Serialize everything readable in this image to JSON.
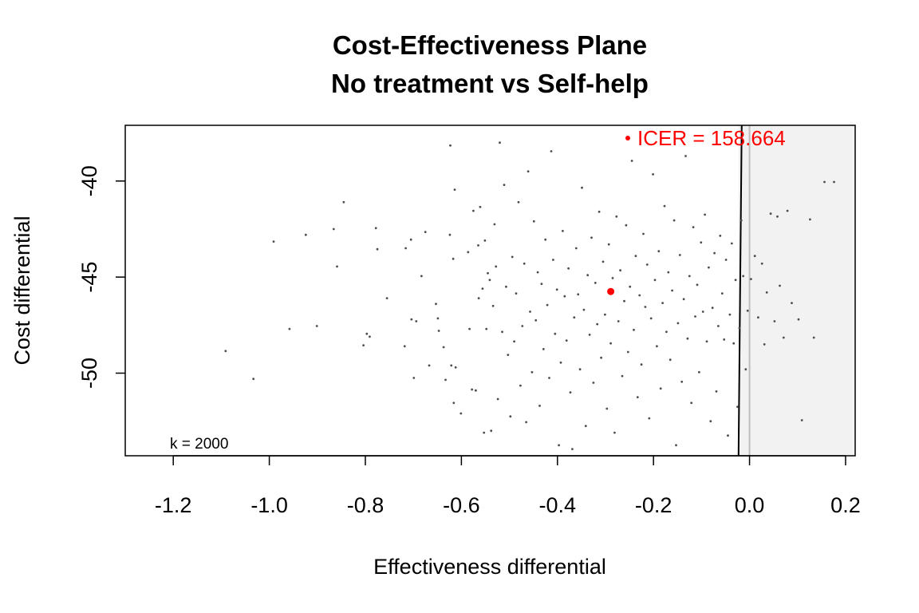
{
  "chart_data": {
    "type": "scatter",
    "title": "Cost-Effectiveness Plane",
    "subtitle": "No treatment vs Self-help",
    "xlabel": "Effectiveness differential",
    "ylabel": "Cost differential",
    "xlim": [
      -1.3,
      0.22
    ],
    "ylim": [
      -54.3,
      -37.1
    ],
    "x_ticks": [
      -1.2,
      -1.0,
      -0.8,
      -0.6,
      -0.4,
      -0.2,
      0.0,
      0.2
    ],
    "x_tick_labels": [
      "-1.2",
      "-1.0",
      "-0.8",
      "-0.6",
      "-0.4",
      "-0.2",
      "0.0",
      "0.2"
    ],
    "y_ticks": [
      -40,
      -45,
      -50
    ],
    "y_tick_labels": [
      "-40",
      "-45",
      "-50"
    ],
    "icer_point": {
      "x": -0.289,
      "y": -45.75
    },
    "icer_label": "ICER = 158.664",
    "k_label": "k = 2000",
    "willingness_line": {
      "k": 2000,
      "x_intercept": -0.0229
    },
    "colors": {
      "points": "#4d4d4d",
      "icer": "#ff0000",
      "region": "#f2f2f2",
      "y_axis_zero": "#bebebe"
    },
    "series": [
      {
        "values": [
          [
            -1.091,
            -48.85
          ],
          [
            -1.033,
            -50.3
          ],
          [
            -0.991,
            -43.15
          ],
          [
            -0.958,
            -47.7
          ],
          [
            -0.924,
            -42.8
          ],
          [
            -0.901,
            -47.55
          ],
          [
            -0.866,
            -42.5
          ],
          [
            -0.859,
            -44.45
          ],
          [
            -0.845,
            -41.1
          ],
          [
            -0.804,
            -48.55
          ],
          [
            -0.797,
            -47.95
          ],
          [
            -0.791,
            -48.1
          ],
          [
            -0.778,
            -42.45
          ],
          [
            -0.775,
            -43.55
          ],
          [
            -0.755,
            -46.1
          ],
          [
            -0.718,
            -48.6
          ],
          [
            -0.716,
            -43.5
          ],
          [
            -0.705,
            -43.05
          ],
          [
            -0.704,
            -47.2
          ],
          [
            -0.699,
            -50.25
          ],
          [
            -0.694,
            -47.3
          ],
          [
            -0.683,
            -44.95
          ],
          [
            -0.675,
            -42.65
          ],
          [
            -0.667,
            -49.6
          ],
          [
            -0.653,
            -46.4
          ],
          [
            -0.649,
            -47.15
          ],
          [
            -0.647,
            -47.8
          ],
          [
            -0.637,
            -48.65
          ],
          [
            -0.633,
            -50.35
          ],
          [
            -0.624,
            -42.8
          ],
          [
            -0.623,
            -38.15
          ],
          [
            -0.621,
            -49.6
          ],
          [
            -0.617,
            -44.05
          ],
          [
            -0.616,
            -51.55
          ],
          [
            -0.614,
            -40.45
          ],
          [
            -0.612,
            -49.7
          ],
          [
            -0.601,
            -52.1
          ],
          [
            -0.586,
            -43.7
          ],
          [
            -0.583,
            -47.7
          ],
          [
            -0.578,
            -50.85
          ],
          [
            -0.575,
            -41.55
          ],
          [
            -0.57,
            -50.9
          ],
          [
            -0.565,
            -43.35
          ],
          [
            -0.564,
            -46.1
          ],
          [
            -0.561,
            -41.35
          ],
          [
            -0.556,
            -45.6
          ],
          [
            -0.553,
            -53.1
          ],
          [
            -0.551,
            -43.1
          ],
          [
            -0.548,
            -47.7
          ],
          [
            -0.545,
            -44.8
          ],
          [
            -0.541,
            -45.15
          ],
          [
            -0.538,
            -53.0
          ],
          [
            -0.534,
            -46.5
          ],
          [
            -0.531,
            -42.25
          ],
          [
            -0.528,
            -44.45
          ],
          [
            -0.524,
            -51.35
          ],
          [
            -0.52,
            -38.0
          ],
          [
            -0.515,
            -47.85
          ],
          [
            -0.511,
            -40.2
          ],
          [
            -0.507,
            -45.5
          ],
          [
            -0.503,
            -49.05
          ],
          [
            -0.498,
            -52.25
          ],
          [
            -0.494,
            -43.95
          ],
          [
            -0.49,
            -48.35
          ],
          [
            -0.486,
            -45.85
          ],
          [
            -0.481,
            -41.1
          ],
          [
            -0.477,
            -50.65
          ],
          [
            -0.473,
            -47.55
          ],
          [
            -0.469,
            -44.3
          ],
          [
            -0.465,
            -52.55
          ],
          [
            -0.461,
            -39.5
          ],
          [
            -0.457,
            -46.8
          ],
          [
            -0.453,
            -49.95
          ],
          [
            -0.449,
            -42.1
          ],
          [
            -0.445,
            -47.25
          ],
          [
            -0.441,
            -44.75
          ],
          [
            -0.437,
            -51.7
          ],
          [
            -0.433,
            -45.35
          ],
          [
            -0.429,
            -48.75
          ],
          [
            -0.425,
            -43.05
          ],
          [
            -0.421,
            -46.45
          ],
          [
            -0.417,
            -50.25
          ],
          [
            -0.413,
            -38.45
          ],
          [
            -0.409,
            -44.1
          ],
          [
            -0.405,
            -47.95
          ],
          [
            -0.401,
            -45.65
          ],
          [
            -0.397,
            -53.75
          ],
          [
            -0.393,
            -49.45
          ],
          [
            -0.389,
            -42.6
          ],
          [
            -0.385,
            -46.0
          ],
          [
            -0.381,
            -48.3
          ],
          [
            -0.377,
            -44.55
          ],
          [
            -0.373,
            -51.0
          ],
          [
            -0.369,
            -53.95
          ],
          [
            -0.365,
            -47.1
          ],
          [
            -0.361,
            -43.5
          ],
          [
            -0.357,
            -45.9
          ],
          [
            -0.353,
            -49.8
          ],
          [
            -0.349,
            -40.35
          ],
          [
            -0.345,
            -46.7
          ],
          [
            -0.341,
            -52.75
          ],
          [
            -0.337,
            -44.9
          ],
          [
            -0.333,
            -48.0
          ],
          [
            -0.329,
            -42.95
          ],
          [
            -0.325,
            -50.5
          ],
          [
            -0.321,
            -45.3
          ],
          [
            -0.317,
            -47.45
          ],
          [
            -0.313,
            -41.6
          ],
          [
            -0.309,
            -49.2
          ],
          [
            -0.305,
            -44.2
          ],
          [
            -0.301,
            -46.95
          ],
          [
            -0.297,
            -51.85
          ],
          [
            -0.293,
            -43.3
          ],
          [
            -0.289,
            -48.45
          ],
          [
            -0.285,
            -45.05
          ],
          [
            -0.281,
            -53.1
          ],
          [
            -0.277,
            -41.85
          ],
          [
            -0.273,
            -47.3
          ],
          [
            -0.269,
            -44.65
          ],
          [
            -0.265,
            -50.15
          ],
          [
            -0.261,
            -46.25
          ],
          [
            -0.257,
            -42.3
          ],
          [
            -0.253,
            -48.9
          ],
          [
            -0.249,
            -45.5
          ],
          [
            -0.245,
            -38.95
          ],
          [
            -0.241,
            -47.75
          ],
          [
            -0.237,
            -43.9
          ],
          [
            -0.233,
            -51.25
          ],
          [
            -0.229,
            -45.95
          ],
          [
            -0.225,
            -49.55
          ],
          [
            -0.221,
            -42.75
          ],
          [
            -0.217,
            -46.55
          ],
          [
            -0.213,
            -44.35
          ],
          [
            -0.209,
            -52.35
          ],
          [
            -0.205,
            -47.15
          ],
          [
            -0.201,
            -39.65
          ],
          [
            -0.197,
            -45.15
          ],
          [
            -0.193,
            -48.6
          ],
          [
            -0.189,
            -43.65
          ],
          [
            -0.185,
            -50.8
          ],
          [
            -0.181,
            -46.35
          ],
          [
            -0.177,
            -41.3
          ],
          [
            -0.173,
            -47.85
          ],
          [
            -0.169,
            -44.75
          ],
          [
            -0.165,
            -49.3
          ],
          [
            -0.161,
            -45.7
          ],
          [
            -0.157,
            -42.05
          ],
          [
            -0.153,
            -53.75
          ],
          [
            -0.149,
            -47.4
          ],
          [
            -0.145,
            -43.85
          ],
          [
            -0.141,
            -50.45
          ],
          [
            -0.137,
            -46.15
          ],
          [
            -0.133,
            -38.7
          ],
          [
            -0.129,
            -48.2
          ],
          [
            -0.125,
            -44.95
          ],
          [
            -0.121,
            -51.55
          ],
          [
            -0.117,
            -42.4
          ],
          [
            -0.113,
            -47.05
          ],
          [
            -0.109,
            -45.4
          ],
          [
            -0.105,
            -49.95
          ],
          [
            -0.101,
            -43.2
          ],
          [
            -0.097,
            -46.8
          ],
          [
            -0.093,
            -41.75
          ],
          [
            -0.089,
            -48.35
          ],
          [
            -0.085,
            -44.5
          ],
          [
            -0.081,
            -52.5
          ],
          [
            -0.077,
            -46.6
          ],
          [
            -0.073,
            -43.75
          ],
          [
            -0.069,
            -50.95
          ],
          [
            -0.065,
            -47.55
          ],
          [
            -0.061,
            -42.85
          ],
          [
            -0.057,
            -45.85
          ],
          [
            -0.053,
            -48.25
          ],
          [
            -0.049,
            -44.1
          ],
          [
            -0.045,
            -53.25
          ],
          [
            -0.041,
            -46.95
          ],
          [
            -0.037,
            -43.25
          ],
          [
            -0.033,
            -48.45
          ],
          [
            -0.029,
            -45.15
          ],
          [
            -0.025,
            -51.75
          ],
          [
            -0.021,
            -47.65
          ],
          [
            -0.017,
            -42.05
          ],
          [
            -0.013,
            -44.95
          ],
          [
            -0.008,
            -49.8
          ],
          [
            -0.004,
            -46.75
          ],
          [
            0.003,
            -45.1
          ],
          [
            0.011,
            -43.9
          ],
          [
            0.018,
            -47.1
          ],
          [
            0.026,
            -44.3
          ],
          [
            0.031,
            -48.5
          ],
          [
            0.036,
            -45.8
          ],
          [
            0.044,
            -41.7
          ],
          [
            0.052,
            -47.3
          ],
          [
            0.058,
            -41.85
          ],
          [
            0.063,
            -45.45
          ],
          [
            0.071,
            -48.15
          ],
          [
            0.079,
            -41.55
          ],
          [
            0.088,
            -46.35
          ],
          [
            0.102,
            -47.2
          ],
          [
            0.109,
            -52.45
          ],
          [
            0.126,
            -42.0
          ],
          [
            0.134,
            -48.15
          ],
          [
            0.156,
            -40.05
          ],
          [
            0.176,
            -40.05
          ]
        ]
      }
    ]
  }
}
